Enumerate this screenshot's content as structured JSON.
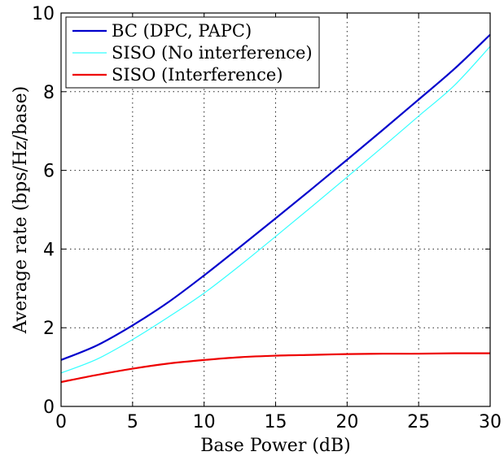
{
  "chart_data": {
    "type": "line",
    "xlabel": "Base Power (dB)",
    "ylabel": "Average rate (bps/Hz/base)",
    "xlim": [
      0,
      30
    ],
    "ylim": [
      0,
      10
    ],
    "xticks": [
      0,
      5,
      10,
      15,
      20,
      25,
      30
    ],
    "yticks": [
      0,
      2,
      4,
      6,
      8,
      10
    ],
    "grid": true,
    "legend_position": "top-left",
    "x": [
      0,
      2.5,
      5,
      7.5,
      10,
      12.5,
      15,
      17.5,
      20,
      22.5,
      25,
      27.5,
      30
    ],
    "series": [
      {
        "name": "BC (DPC, PAPC)",
        "color": "#0000cc",
        "values": [
          1.18,
          1.55,
          2.06,
          2.65,
          3.33,
          4.05,
          4.78,
          5.52,
          6.27,
          7.03,
          7.8,
          8.58,
          9.45
        ]
      },
      {
        "name": "SISO (No interference)",
        "color": "#33ffff",
        "values": [
          0.85,
          1.2,
          1.7,
          2.27,
          2.88,
          3.58,
          4.32,
          5.07,
          5.83,
          6.6,
          7.38,
          8.16,
          9.15
        ]
      },
      {
        "name": "SISO (Interference)",
        "color": "#ee0000",
        "values": [
          0.62,
          0.8,
          0.96,
          1.09,
          1.18,
          1.25,
          1.29,
          1.31,
          1.33,
          1.34,
          1.34,
          1.35,
          1.35
        ]
      }
    ]
  }
}
